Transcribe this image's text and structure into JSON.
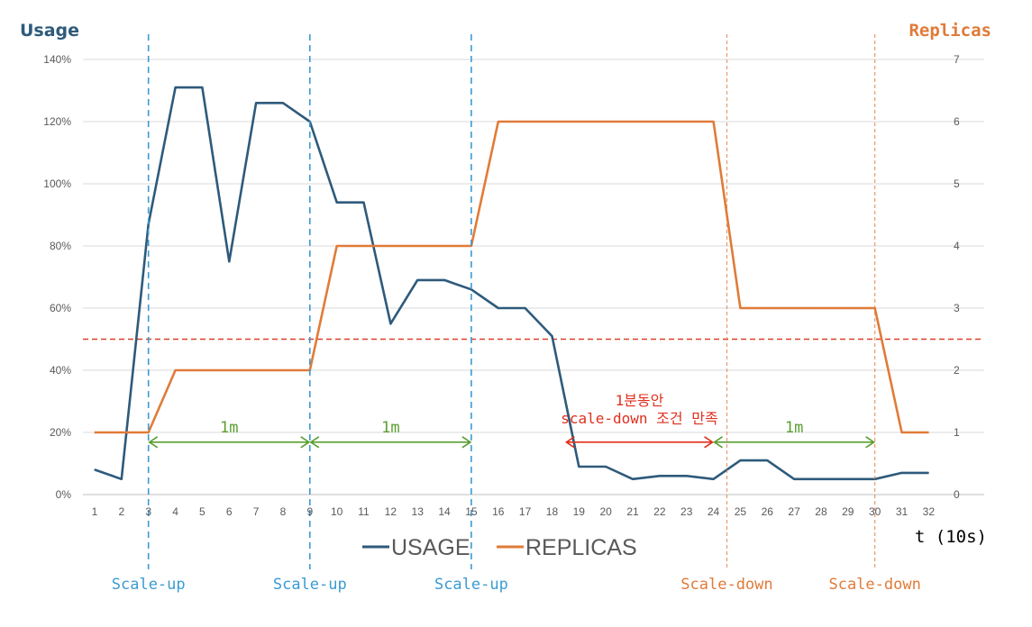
{
  "chart_data": {
    "type": "line",
    "left_axis_title": "Usage",
    "right_axis_title": "Replicas",
    "xlabel": "t (10s)",
    "x": [
      1,
      2,
      3,
      4,
      5,
      6,
      7,
      8,
      9,
      10,
      11,
      12,
      13,
      14,
      15,
      16,
      17,
      18,
      19,
      20,
      21,
      22,
      23,
      24,
      25,
      26,
      27,
      28,
      29,
      30,
      31,
      32
    ],
    "y_left_ticks": [
      "0%",
      "20%",
      "40%",
      "60%",
      "80%",
      "100%",
      "120%",
      "140%"
    ],
    "y_left_range": [
      0,
      140
    ],
    "y_right_ticks": [
      "0",
      "1",
      "2",
      "3",
      "4",
      "5",
      "6",
      "7"
    ],
    "y_right_range": [
      0,
      7
    ],
    "series": [
      {
        "name": "USAGE",
        "axis": "left",
        "color": "#2e5a7b",
        "values": [
          8,
          5,
          87,
          131,
          131,
          75,
          126,
          126,
          120,
          94,
          94,
          55,
          69,
          69,
          66,
          60,
          60,
          51,
          9,
          9,
          5,
          6,
          6,
          5,
          11,
          11,
          5,
          5,
          5,
          5,
          7,
          7
        ]
      },
      {
        "name": "REPLICAS",
        "axis": "right",
        "color": "#e07b39",
        "values": [
          1,
          1,
          1,
          2,
          2,
          2,
          2,
          2,
          2,
          4,
          4,
          4,
          4,
          4,
          4,
          6,
          6,
          6,
          6,
          6,
          6,
          6,
          6,
          6,
          3,
          3,
          3,
          3,
          3,
          3,
          1,
          1
        ]
      }
    ],
    "threshold": {
      "value": 50,
      "axis": "left",
      "color": "#d9412a"
    },
    "events": [
      {
        "x": 3,
        "label": "Scale-up",
        "color": "#3b9bd3"
      },
      {
        "x": 9,
        "label": "Scale-up",
        "color": "#3b9bd3"
      },
      {
        "x": 15,
        "label": "Scale-up",
        "color": "#3b9bd3"
      },
      {
        "x": 24.5,
        "label": "Scale-down",
        "color": "#e07b39"
      },
      {
        "x": 30,
        "label": "Scale-down",
        "color": "#e07b39"
      }
    ],
    "spans": [
      {
        "from": 3,
        "to": 9,
        "y": 17,
        "label": "1m",
        "color": "#5a9e2f"
      },
      {
        "from": 9,
        "to": 15,
        "y": 17,
        "label": "1m",
        "color": "#5a9e2f"
      },
      {
        "from": 24,
        "to": 30,
        "y": 17,
        "label": "1m",
        "color": "#5a9e2f"
      },
      {
        "from": 18.5,
        "to": 24,
        "y": 17,
        "label": "1분동안\nscale-down 조건 만족",
        "color": "#e0301e"
      }
    ],
    "legend": [
      "USAGE",
      "REPLICAS"
    ],
    "grid": true
  }
}
